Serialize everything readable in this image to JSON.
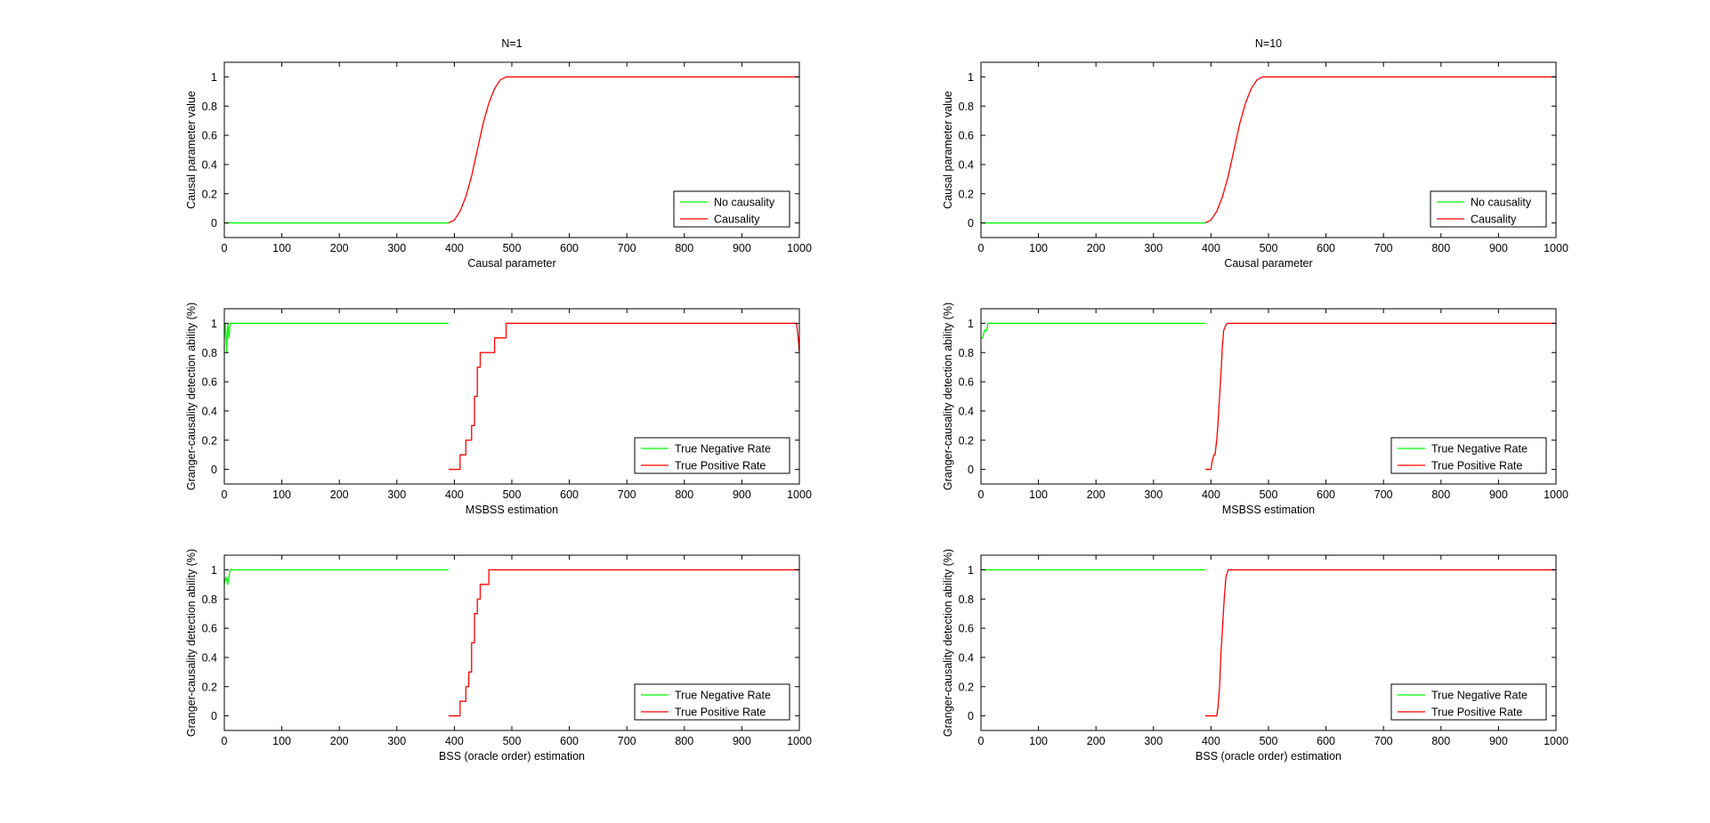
{
  "figure": {
    "background": "#ffffff"
  },
  "chart_data": [
    {
      "type": "line",
      "title": "N=1",
      "xlabel": "Causal parameter",
      "ylabel": "Causal parameter value",
      "xlim": [
        0,
        1000
      ],
      "ylim": [
        -0.1,
        1.1
      ],
      "xticks": [
        0,
        100,
        200,
        300,
        400,
        500,
        600,
        700,
        800,
        900,
        1000
      ],
      "xtick_labels": [
        "0",
        "100",
        "200",
        "300",
        "400",
        "500",
        "600",
        "700",
        "800",
        "900",
        "1000"
      ],
      "yticks": [
        0,
        0.2,
        0.4,
        0.6,
        0.8,
        1
      ],
      "ytick_labels": [
        "0",
        "0.2",
        "0.4",
        "0.6",
        "0.8",
        "1"
      ],
      "grid": false,
      "legend_position": "bottom-right",
      "series": [
        {
          "name": "No causality",
          "color": "#00ff00",
          "x": [
            0,
            390
          ],
          "y": [
            0,
            0
          ]
        },
        {
          "name": "Causality",
          "color": "#ff0000",
          "x": [
            390,
            400,
            410,
            420,
            430,
            440,
            450,
            460,
            470,
            480,
            490,
            1000
          ],
          "y": [
            0,
            0.02,
            0.08,
            0.18,
            0.32,
            0.5,
            0.68,
            0.82,
            0.92,
            0.98,
            1,
            1
          ]
        }
      ]
    },
    {
      "type": "line",
      "title": "N=10",
      "xlabel": "Causal parameter",
      "ylabel": "Causal parameter value",
      "xlim": [
        0,
        1000
      ],
      "ylim": [
        -0.1,
        1.1
      ],
      "xticks": [
        0,
        100,
        200,
        300,
        400,
        500,
        600,
        700,
        800,
        900,
        1000
      ],
      "xtick_labels": [
        "0",
        "100",
        "200",
        "300",
        "400",
        "500",
        "600",
        "700",
        "800",
        "900",
        "1000"
      ],
      "yticks": [
        0,
        0.2,
        0.4,
        0.6,
        0.8,
        1
      ],
      "ytick_labels": [
        "0",
        "0.2",
        "0.4",
        "0.6",
        "0.8",
        "1"
      ],
      "grid": false,
      "legend_position": "bottom-right",
      "series": [
        {
          "name": "No causality",
          "color": "#00ff00",
          "x": [
            0,
            390
          ],
          "y": [
            0,
            0
          ]
        },
        {
          "name": "Causality",
          "color": "#ff0000",
          "x": [
            390,
            400,
            410,
            420,
            430,
            440,
            450,
            460,
            470,
            480,
            490,
            1000
          ],
          "y": [
            0,
            0.02,
            0.08,
            0.18,
            0.32,
            0.5,
            0.68,
            0.82,
            0.92,
            0.98,
            1,
            1
          ]
        }
      ]
    },
    {
      "type": "line",
      "title": "",
      "xlabel": "MSBSS estimation",
      "ylabel": "Granger-causality detection ability (%)",
      "xlim": [
        0,
        1000
      ],
      "ylim": [
        -0.1,
        1.1
      ],
      "xticks": [
        0,
        100,
        200,
        300,
        400,
        500,
        600,
        700,
        800,
        900,
        1000
      ],
      "xtick_labels": [
        "0",
        "100",
        "200",
        "300",
        "400",
        "500",
        "600",
        "700",
        "800",
        "900",
        "1000"
      ],
      "yticks": [
        0,
        0.2,
        0.4,
        0.6,
        0.8,
        1
      ],
      "ytick_labels": [
        "0",
        "0.2",
        "0.4",
        "0.6",
        "0.8",
        "1"
      ],
      "grid": false,
      "legend_position": "bottom-right",
      "series": [
        {
          "name": "True Negative Rate",
          "color": "#00ff00",
          "x": [
            0,
            2,
            4,
            6,
            8,
            10,
            390
          ],
          "y": [
            0.9,
            1,
            0.8,
            1,
            0.9,
            1,
            1
          ]
        },
        {
          "name": "True Positive Rate",
          "color": "#ff0000",
          "x": [
            390,
            410,
            410,
            420,
            420,
            430,
            430,
            435,
            435,
            440,
            440,
            445,
            445,
            450,
            450,
            470,
            470,
            490,
            490,
            995,
            998,
            1000
          ],
          "y": [
            0,
            0,
            0.1,
            0.1,
            0.2,
            0.2,
            0.3,
            0.3,
            0.5,
            0.5,
            0.7,
            0.7,
            0.8,
            0.8,
            0.8,
            0.8,
            0.9,
            0.9,
            1,
            1,
            0.9,
            0.8
          ]
        }
      ]
    },
    {
      "type": "line",
      "title": "",
      "xlabel": "MSBSS estimation",
      "ylabel": "Granger-causality detection ability (%)",
      "xlim": [
        0,
        1000
      ],
      "ylim": [
        -0.1,
        1.1
      ],
      "xticks": [
        0,
        100,
        200,
        300,
        400,
        500,
        600,
        700,
        800,
        900,
        1000
      ],
      "xtick_labels": [
        "0",
        "100",
        "200",
        "300",
        "400",
        "500",
        "600",
        "700",
        "800",
        "900",
        "1000"
      ],
      "yticks": [
        0,
        0.2,
        0.4,
        0.6,
        0.8,
        1
      ],
      "ytick_labels": [
        "0",
        "0.2",
        "0.4",
        "0.6",
        "0.8",
        "1"
      ],
      "grid": false,
      "legend_position": "bottom-right",
      "series": [
        {
          "name": "True Negative Rate",
          "color": "#00ff00",
          "x": [
            0,
            3,
            6,
            10,
            12,
            390
          ],
          "y": [
            0.9,
            0.9,
            0.95,
            0.95,
            1,
            1
          ]
        },
        {
          "name": "True Positive Rate",
          "color": "#ff0000",
          "x": [
            390,
            400,
            402,
            405,
            407,
            410,
            412,
            415,
            418,
            420,
            422,
            425,
            428,
            430,
            1000
          ],
          "y": [
            0,
            0,
            0.05,
            0.1,
            0.1,
            0.2,
            0.3,
            0.5,
            0.7,
            0.85,
            0.95,
            0.98,
            1,
            1,
            1
          ]
        }
      ]
    },
    {
      "type": "line",
      "title": "",
      "xlabel": "BSS (oracle order) estimation",
      "ylabel": "Granger-causality detection ability (%)",
      "xlim": [
        0,
        1000
      ],
      "ylim": [
        -0.1,
        1.1
      ],
      "xticks": [
        0,
        100,
        200,
        300,
        400,
        500,
        600,
        700,
        800,
        900,
        1000
      ],
      "xtick_labels": [
        "0",
        "100",
        "200",
        "300",
        "400",
        "500",
        "600",
        "700",
        "800",
        "900",
        "1000"
      ],
      "yticks": [
        0,
        0.2,
        0.4,
        0.6,
        0.8,
        1
      ],
      "ytick_labels": [
        "0",
        "0.2",
        "0.4",
        "0.6",
        "0.8",
        "1"
      ],
      "grid": false,
      "legend_position": "bottom-right",
      "series": [
        {
          "name": "True Negative Rate",
          "color": "#00ff00",
          "x": [
            0,
            3,
            6,
            10,
            390
          ],
          "y": [
            0.9,
            0.95,
            0.9,
            1,
            1
          ]
        },
        {
          "name": "True Positive Rate",
          "color": "#ff0000",
          "x": [
            390,
            410,
            410,
            420,
            420,
            425,
            425,
            430,
            430,
            435,
            435,
            440,
            440,
            445,
            445,
            460,
            460,
            1000
          ],
          "y": [
            0,
            0,
            0.1,
            0.1,
            0.2,
            0.2,
            0.3,
            0.3,
            0.5,
            0.5,
            0.7,
            0.7,
            0.8,
            0.8,
            0.9,
            0.9,
            1,
            1
          ]
        }
      ]
    },
    {
      "type": "line",
      "title": "",
      "xlabel": "BSS (oracle order) estimation",
      "ylabel": "Granger-causality detection ability (%)",
      "xlim": [
        0,
        1000
      ],
      "ylim": [
        -0.1,
        1.1
      ],
      "xticks": [
        0,
        100,
        200,
        300,
        400,
        500,
        600,
        700,
        800,
        900,
        1000
      ],
      "xtick_labels": [
        "0",
        "100",
        "200",
        "300",
        "400",
        "500",
        "600",
        "700",
        "800",
        "900",
        "1000"
      ],
      "yticks": [
        0,
        0.2,
        0.4,
        0.6,
        0.8,
        1
      ],
      "ytick_labels": [
        "0",
        "0.2",
        "0.4",
        "0.6",
        "0.8",
        "1"
      ],
      "grid": false,
      "legend_position": "bottom-right",
      "series": [
        {
          "name": "True Negative Rate",
          "color": "#00ff00",
          "x": [
            0,
            390
          ],
          "y": [
            1,
            1
          ]
        },
        {
          "name": "True Positive Rate",
          "color": "#ff0000",
          "x": [
            390,
            410,
            412,
            415,
            417,
            420,
            423,
            426,
            430,
            1000
          ],
          "y": [
            0,
            0,
            0.05,
            0.2,
            0.4,
            0.6,
            0.8,
            0.95,
            1,
            1
          ]
        }
      ]
    }
  ]
}
